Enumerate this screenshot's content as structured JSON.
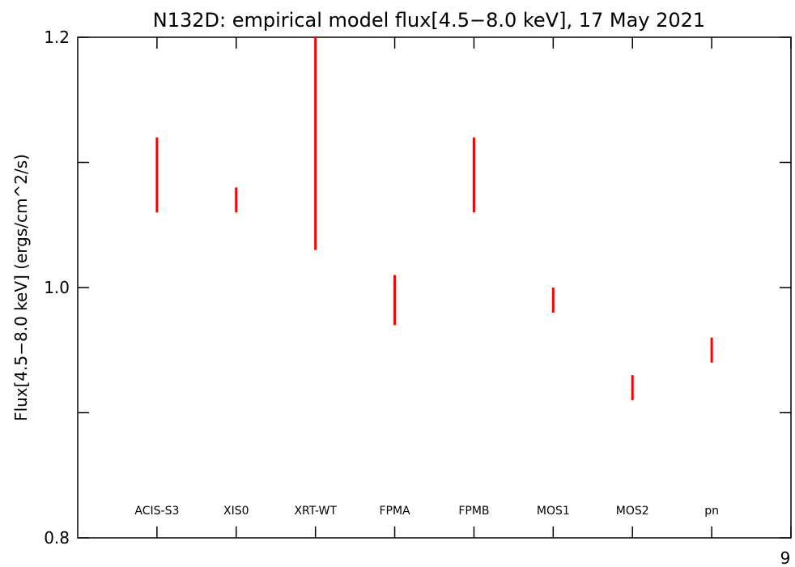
{
  "chart_data": {
    "type": "errorbar",
    "title": "N132D: empirical model flux[4.5−8.0 keV], 17 May 2021",
    "xlabel": "",
    "ylabel": "Flux[4.5−8.0 keV] (ergs/cm^2/s)",
    "ylim": [
      0.8,
      1.2
    ],
    "xlim": [
      0,
      9
    ],
    "yticks": [
      0.8,
      1.0,
      1.2
    ],
    "ytick_labels": [
      "0.8",
      "1.0",
      "1.2"
    ],
    "ytick_minor": [
      0.9,
      1.1
    ],
    "xtick_positions": [
      1,
      2,
      3,
      4,
      5,
      6,
      7,
      8,
      9
    ],
    "corner_label": "9",
    "grid": false,
    "error_color": "#ff0000",
    "points": [
      {
        "label": "ACIS-S3",
        "x": 1,
        "y_low": 1.06,
        "y_high": 1.12
      },
      {
        "label": "XIS0",
        "x": 2,
        "y_low": 1.06,
        "y_high": 1.08
      },
      {
        "label": "XRT-WT",
        "x": 3,
        "y_low": 1.03,
        "y_high": 1.2
      },
      {
        "label": "FPMA",
        "x": 4,
        "y_low": 0.97,
        "y_high": 1.01
      },
      {
        "label": "FPMB",
        "x": 5,
        "y_low": 1.06,
        "y_high": 1.12
      },
      {
        "label": "MOS1",
        "x": 6,
        "y_low": 0.98,
        "y_high": 1.0
      },
      {
        "label": "MOS2",
        "x": 7,
        "y_low": 0.91,
        "y_high": 0.93
      },
      {
        "label": "pn",
        "x": 8,
        "y_low": 0.94,
        "y_high": 0.96
      }
    ]
  }
}
